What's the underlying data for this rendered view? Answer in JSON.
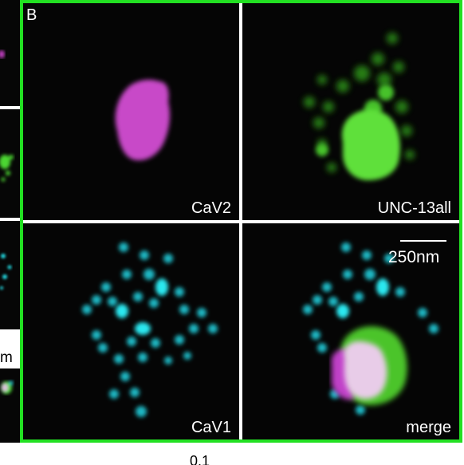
{
  "figure": {
    "panel_letter": "B",
    "border_color": "#22e022",
    "tiles": [
      {
        "label": "CaV2",
        "channel_color": "#cc44cc"
      },
      {
        "label": "UNC-13all",
        "channel_color": "#44d628"
      },
      {
        "label": "CaV1",
        "channel_color": "#22d8e0"
      },
      {
        "label": "merge",
        "channel_color": "#e6c8e6"
      }
    ],
    "scale_bar_label": "250nm",
    "left_strip_unit_fragment": "m",
    "bottom_fragment": "0.1"
  }
}
